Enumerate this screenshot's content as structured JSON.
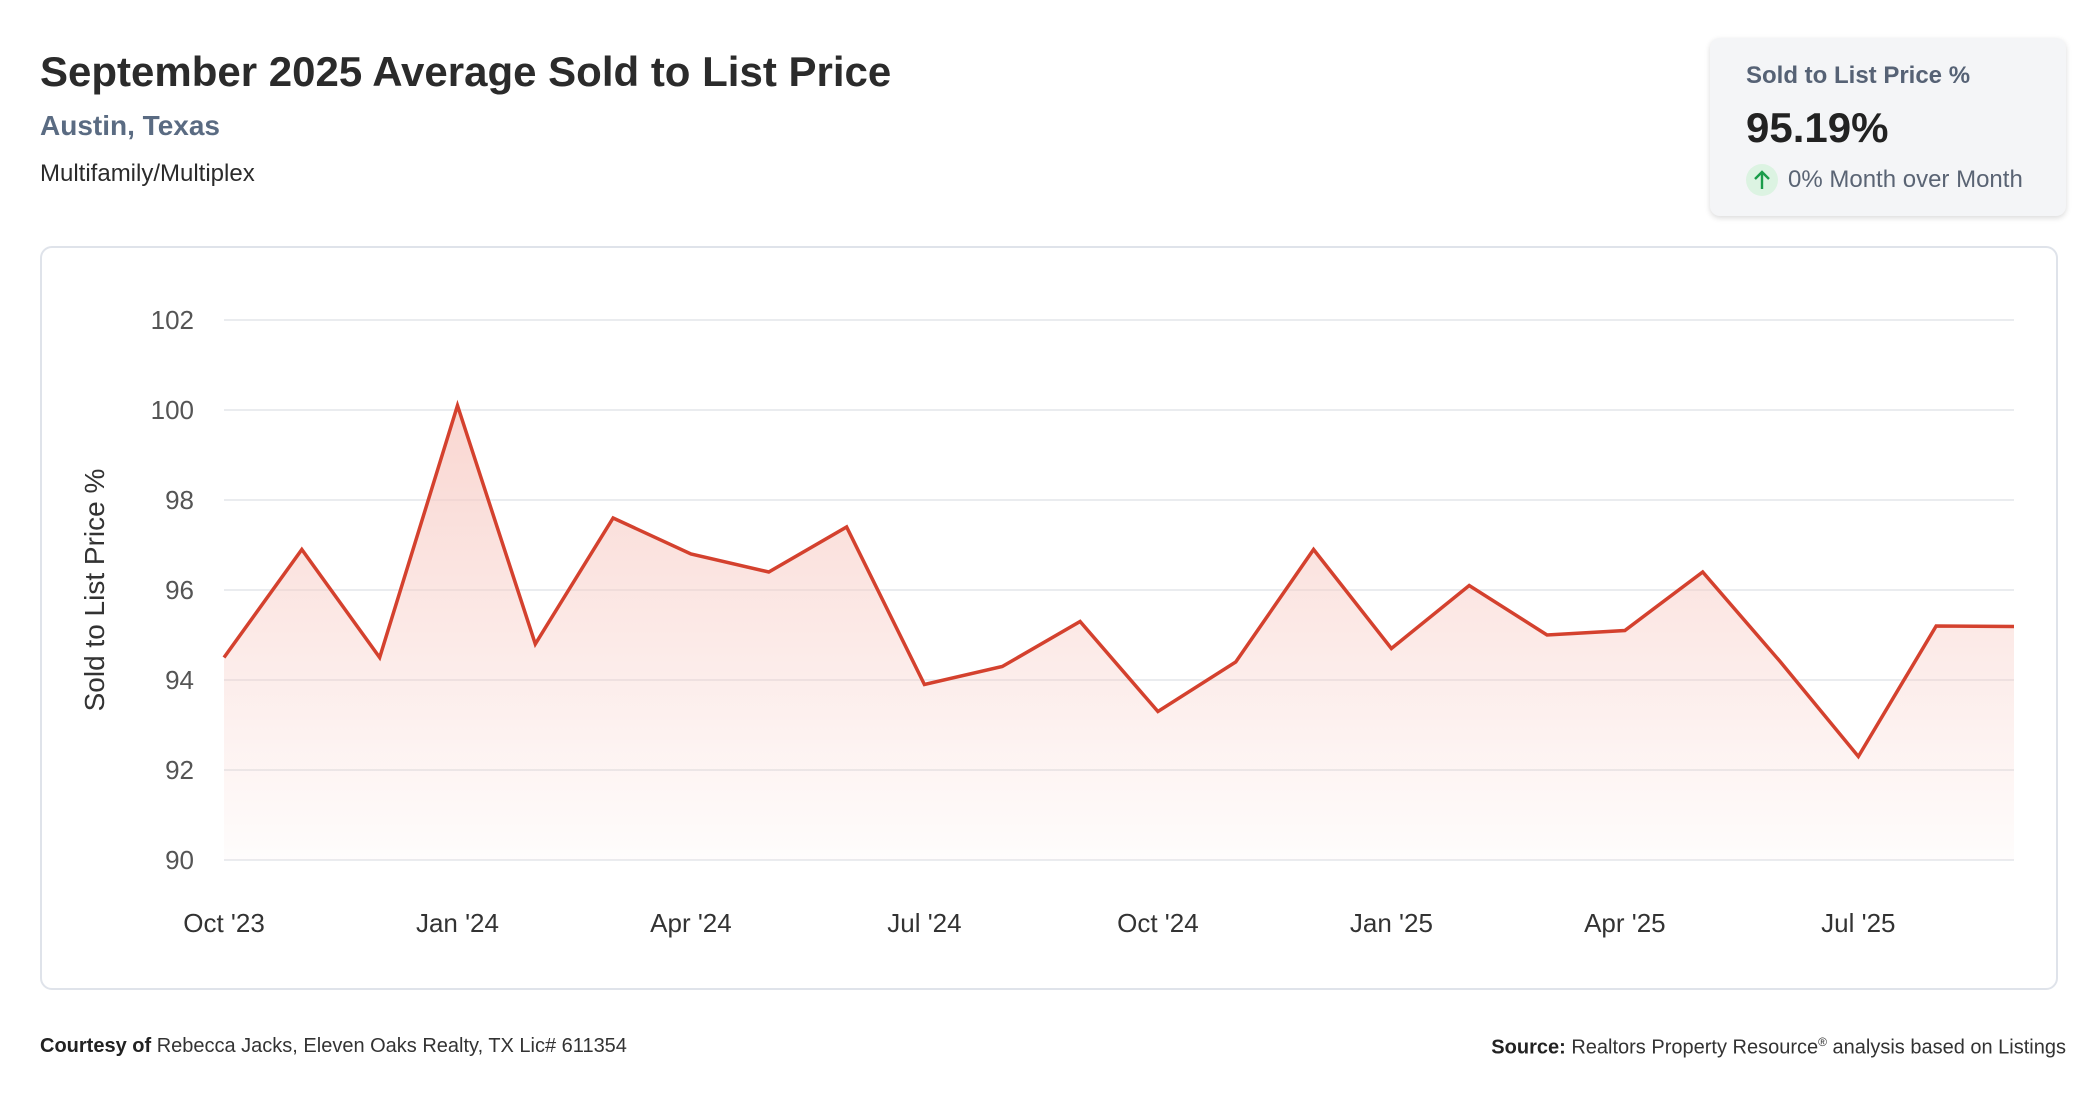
{
  "header": {
    "title": "September 2025 Average Sold to List Price",
    "location": "Austin, Texas",
    "category": "Multifamily/Multiplex"
  },
  "kpi": {
    "label": "Sold to List Price %",
    "value": "95.19%",
    "change": "0% Month over Month",
    "direction": "up",
    "arrow_icon": "arrow-up-icon",
    "arrow_color": "#1a9c4a"
  },
  "footer": {
    "courtesy_label": "Courtesy of",
    "courtesy_text": "Rebecca Jacks, Eleven Oaks Realty, TX Lic# 611354",
    "source_label": "Source:",
    "source_text": "Realtors Property Resource",
    "source_mark": "®",
    "source_suffix": "analysis based on Listings"
  },
  "colors": {
    "line": "#d4412e",
    "fill_top": "#f7c9c2",
    "grid": "#e3e6ea"
  },
  "chart_data": {
    "type": "area",
    "ylabel": "Sold to List Price %",
    "ylim": [
      90,
      102
    ],
    "yticks": [
      90,
      92,
      94,
      96,
      98,
      100,
      102
    ],
    "grid": true,
    "legend": "none",
    "x": [
      "2023-10",
      "2023-11",
      "2023-12",
      "2024-01",
      "2024-02",
      "2024-03",
      "2024-04",
      "2024-05",
      "2024-06",
      "2024-07",
      "2024-08",
      "2024-09",
      "2024-10",
      "2024-11",
      "2024-12",
      "2025-01",
      "2025-02",
      "2025-03",
      "2025-04",
      "2025-05",
      "2025-06",
      "2025-07",
      "2025-08",
      "2025-09"
    ],
    "xticks": [
      {
        "index": 0,
        "label": "Oct '23"
      },
      {
        "index": 3,
        "label": "Jan '24"
      },
      {
        "index": 6,
        "label": "Apr '24"
      },
      {
        "index": 9,
        "label": "Jul '24"
      },
      {
        "index": 12,
        "label": "Oct '24"
      },
      {
        "index": 15,
        "label": "Jan '25"
      },
      {
        "index": 18,
        "label": "Apr '25"
      },
      {
        "index": 21,
        "label": "Jul '25"
      }
    ],
    "series": [
      {
        "values": [
          94.5,
          96.9,
          94.5,
          100.1,
          94.8,
          97.6,
          96.8,
          96.4,
          97.4,
          93.9,
          94.3,
          95.3,
          93.3,
          94.4,
          96.9,
          94.7,
          96.1,
          95.0,
          95.1,
          96.4,
          94.4,
          92.3,
          95.2,
          95.19
        ]
      }
    ]
  }
}
